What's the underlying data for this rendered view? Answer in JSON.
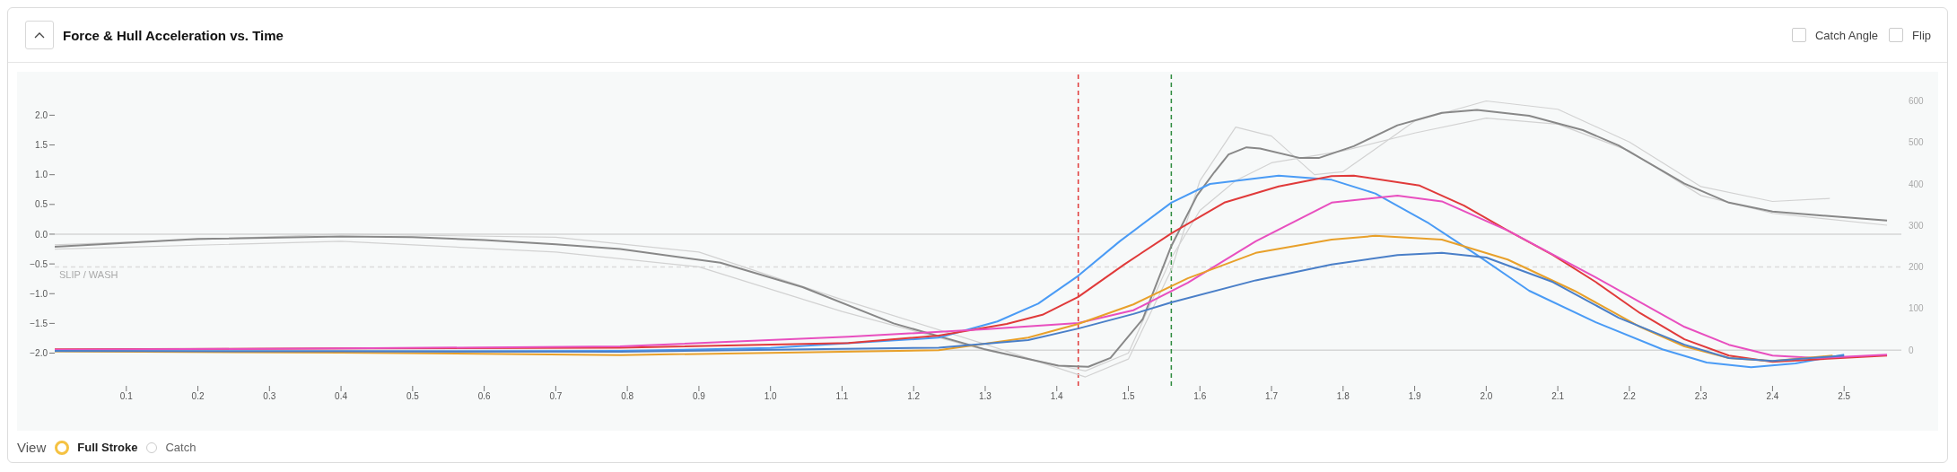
{
  "chart_data": {
    "type": "line",
    "title": "Force & Hull Acceleration vs. Time",
    "annotations": [
      "Catch Angle",
      "Flip",
      "View",
      "Full Stroke",
      "Catch"
    ],
    "xlim": [
      0,
      2.58
    ],
    "xticks": [
      0.1,
      0.2,
      0.3,
      0.4,
      0.5,
      0.6,
      0.7,
      0.8,
      0.9,
      {
        "value": 1,
        "label": "1.0"
      },
      1.1,
      1.2,
      1.3,
      1.4,
      1.5,
      1.6,
      1.7,
      1.8,
      1.9,
      {
        "value": 2,
        "label": "2.0"
      },
      2.1,
      2.2,
      2.3,
      2.4,
      2.5
    ],
    "ylim": [
      -2.55,
      2.73
    ],
    "yticks": [
      {
        "value": -2,
        "label": "−2.0"
      },
      {
        "value": -1.5,
        "label": "−1.5"
      },
      {
        "value": -1,
        "label": "−1.0"
      },
      {
        "value": -0.5,
        "label": "−0.5"
      },
      {
        "value": 0,
        "label": "0.0"
      },
      {
        "value": 0.5,
        "label": "0.5"
      },
      {
        "value": 1,
        "label": "1.0"
      },
      {
        "value": 1.5,
        "label": "1.5"
      },
      {
        "value": 2,
        "label": "2.0"
      }
    ],
    "y2lim": [
      -86,
      670
    ],
    "y2ticks": [
      0,
      100,
      200,
      300,
      400,
      500,
      600
    ],
    "marker": "none",
    "line_style": "solid",
    "ref_lines": [
      {
        "axis": "y",
        "value": 0,
        "color": "#d6d6d6"
      },
      {
        "axis": "y2",
        "value": 0,
        "color": "#d6d6d6"
      },
      {
        "axis": "y",
        "value": -0.55,
        "label": "SLIP / WASH",
        "color": "#dcdcdc",
        "line_style": "dashed"
      },
      {
        "axis": "x",
        "value": 1.43,
        "color": "#e03a3a",
        "line_style": "dashed"
      },
      {
        "axis": "x",
        "value": 1.56,
        "color": "#2e8b3e",
        "line_style": "dashed"
      }
    ],
    "series": [
      {
        "color": "#d2d2d2",
        "x": [
          0,
          0.4,
          0.7,
          0.9,
          1.1,
          1.3,
          1.44,
          1.5,
          1.56,
          1.6,
          1.65,
          1.7,
          1.76,
          1.8,
          1.9,
          2.0,
          2.1,
          2.2,
          2.3,
          2.4,
          2.48
        ],
        "values": [
          -0.18,
          0,
          -0.05,
          -0.3,
          -1.1,
          -1.85,
          -2.4,
          -2.1,
          -0.6,
          0.9,
          1.8,
          1.65,
          1.0,
          1.05,
          1.9,
          2.24,
          2.1,
          1.55,
          0.8,
          0.55,
          0.6
        ]
      },
      {
        "color": "#d2d2d2",
        "x": [
          0,
          0.4,
          0.7,
          0.9,
          1.1,
          1.3,
          1.44,
          1.5,
          1.56,
          1.6,
          1.65,
          1.7,
          1.8,
          1.9,
          2.0,
          2.1,
          2.2,
          2.3,
          2.4,
          2.56
        ],
        "values": [
          -0.25,
          -0.12,
          -0.3,
          -0.55,
          -1.3,
          -1.95,
          -2.3,
          -2.0,
          -0.4,
          0.4,
          0.9,
          1.2,
          1.4,
          1.7,
          1.95,
          1.85,
          1.4,
          0.65,
          0.35,
          0.15
        ]
      },
      {
        "color": "#888888",
        "x": [
          0,
          0.2,
          0.4,
          0.5,
          0.6,
          0.7,
          0.79,
          0.93,
          1.045,
          1.172,
          1.298,
          1.402,
          1.444,
          1.475,
          1.52,
          1.56,
          1.596,
          1.62,
          1.64,
          1.665,
          1.684,
          1.74,
          1.766,
          1.815,
          1.876,
          1.938,
          1.987,
          2.06,
          2.135,
          2.185,
          2.277,
          2.339,
          2.4,
          2.462,
          2.56
        ],
        "values": [
          -0.21,
          -0.08,
          -0.04,
          -0.05,
          -0.1,
          -0.17,
          -0.25,
          -0.48,
          -0.89,
          -1.5,
          -1.93,
          -2.21,
          -2.23,
          -2.08,
          -1.43,
          -0.2,
          0.65,
          1.04,
          1.34,
          1.46,
          1.44,
          1.28,
          1.28,
          1.48,
          1.83,
          2.04,
          2.09,
          1.99,
          1.75,
          1.49,
          0.85,
          0.53,
          0.38,
          0.32,
          0.23
        ]
      },
      {
        "axis": "y2",
        "color": "#4a9bf5",
        "x": [
          0,
          0.4,
          0.79,
          1.0,
          1.235,
          1.317,
          1.374,
          1.43,
          1.488,
          1.56,
          1.614,
          1.71,
          1.784,
          1.845,
          1.92,
          1.987,
          2.06,
          2.153,
          2.246,
          2.308,
          2.37,
          2.432,
          2.5
        ],
        "values": [
          -3,
          -3,
          -2,
          5,
          30,
          69,
          112,
          179,
          262,
          355,
          400,
          420,
          410,
          377,
          305,
          229,
          143,
          67,
          2,
          -30,
          -41,
          -32,
          -11
        ]
      },
      {
        "axis": "y2",
        "color": "#e03a3a",
        "x": [
          0,
          0.4,
          0.79,
          1.109,
          1.235,
          1.33,
          1.38,
          1.43,
          1.494,
          1.56,
          1.634,
          1.71,
          1.784,
          1.815,
          1.907,
          1.969,
          2.03,
          2.093,
          2.153,
          2.215,
          2.277,
          2.339,
          2.4,
          2.56
        ],
        "values": [
          2,
          4,
          6,
          17,
          35,
          63,
          85,
          128,
          206,
          281,
          355,
          394,
          419,
          420,
          396,
          348,
          288,
          229,
          164,
          89,
          26,
          -13,
          -28,
          -13
        ]
      },
      {
        "axis": "y2",
        "color": "#e84fbf",
        "x": [
          0,
          0.4,
          0.79,
          1.109,
          1.298,
          1.43,
          1.507,
          1.583,
          1.678,
          1.784,
          1.876,
          1.938,
          2.03,
          2.153,
          2.277,
          2.339,
          2.4,
          2.462,
          2.56
        ],
        "values": [
          1,
          4,
          9,
          32,
          50,
          65,
          96,
          162,
          262,
          355,
          372,
          358,
          288,
          175,
          56,
          13,
          -13,
          -19,
          -11
        ]
      },
      {
        "axis": "y2",
        "color": "#e8a02a",
        "x": [
          0,
          0.4,
          0.79,
          1.235,
          1.36,
          1.43,
          1.507,
          1.583,
          1.678,
          1.784,
          1.845,
          1.938,
          2.03,
          2.123,
          2.215,
          2.277,
          2.339,
          2.4,
          2.484
        ],
        "values": [
          -3,
          -6,
          -12,
          0,
          30,
          63,
          110,
          173,
          234,
          266,
          275,
          266,
          218,
          143,
          56,
          9,
          -19,
          -26,
          -13
        ]
      },
      {
        "axis": "y2",
        "color": "#4a7fc8",
        "x": [
          0,
          0.4,
          0.79,
          1.235,
          1.36,
          1.43,
          1.507,
          1.56,
          1.678,
          1.784,
          1.876,
          1.938,
          2.0,
          2.093,
          2.185,
          2.277,
          2.339,
          2.4,
          2.5
        ],
        "values": [
          -2,
          -3,
          -4,
          6,
          24,
          52,
          87,
          115,
          168,
          206,
          229,
          234,
          223,
          164,
          78,
          13,
          -19,
          -26,
          -13
        ]
      }
    ]
  }
}
